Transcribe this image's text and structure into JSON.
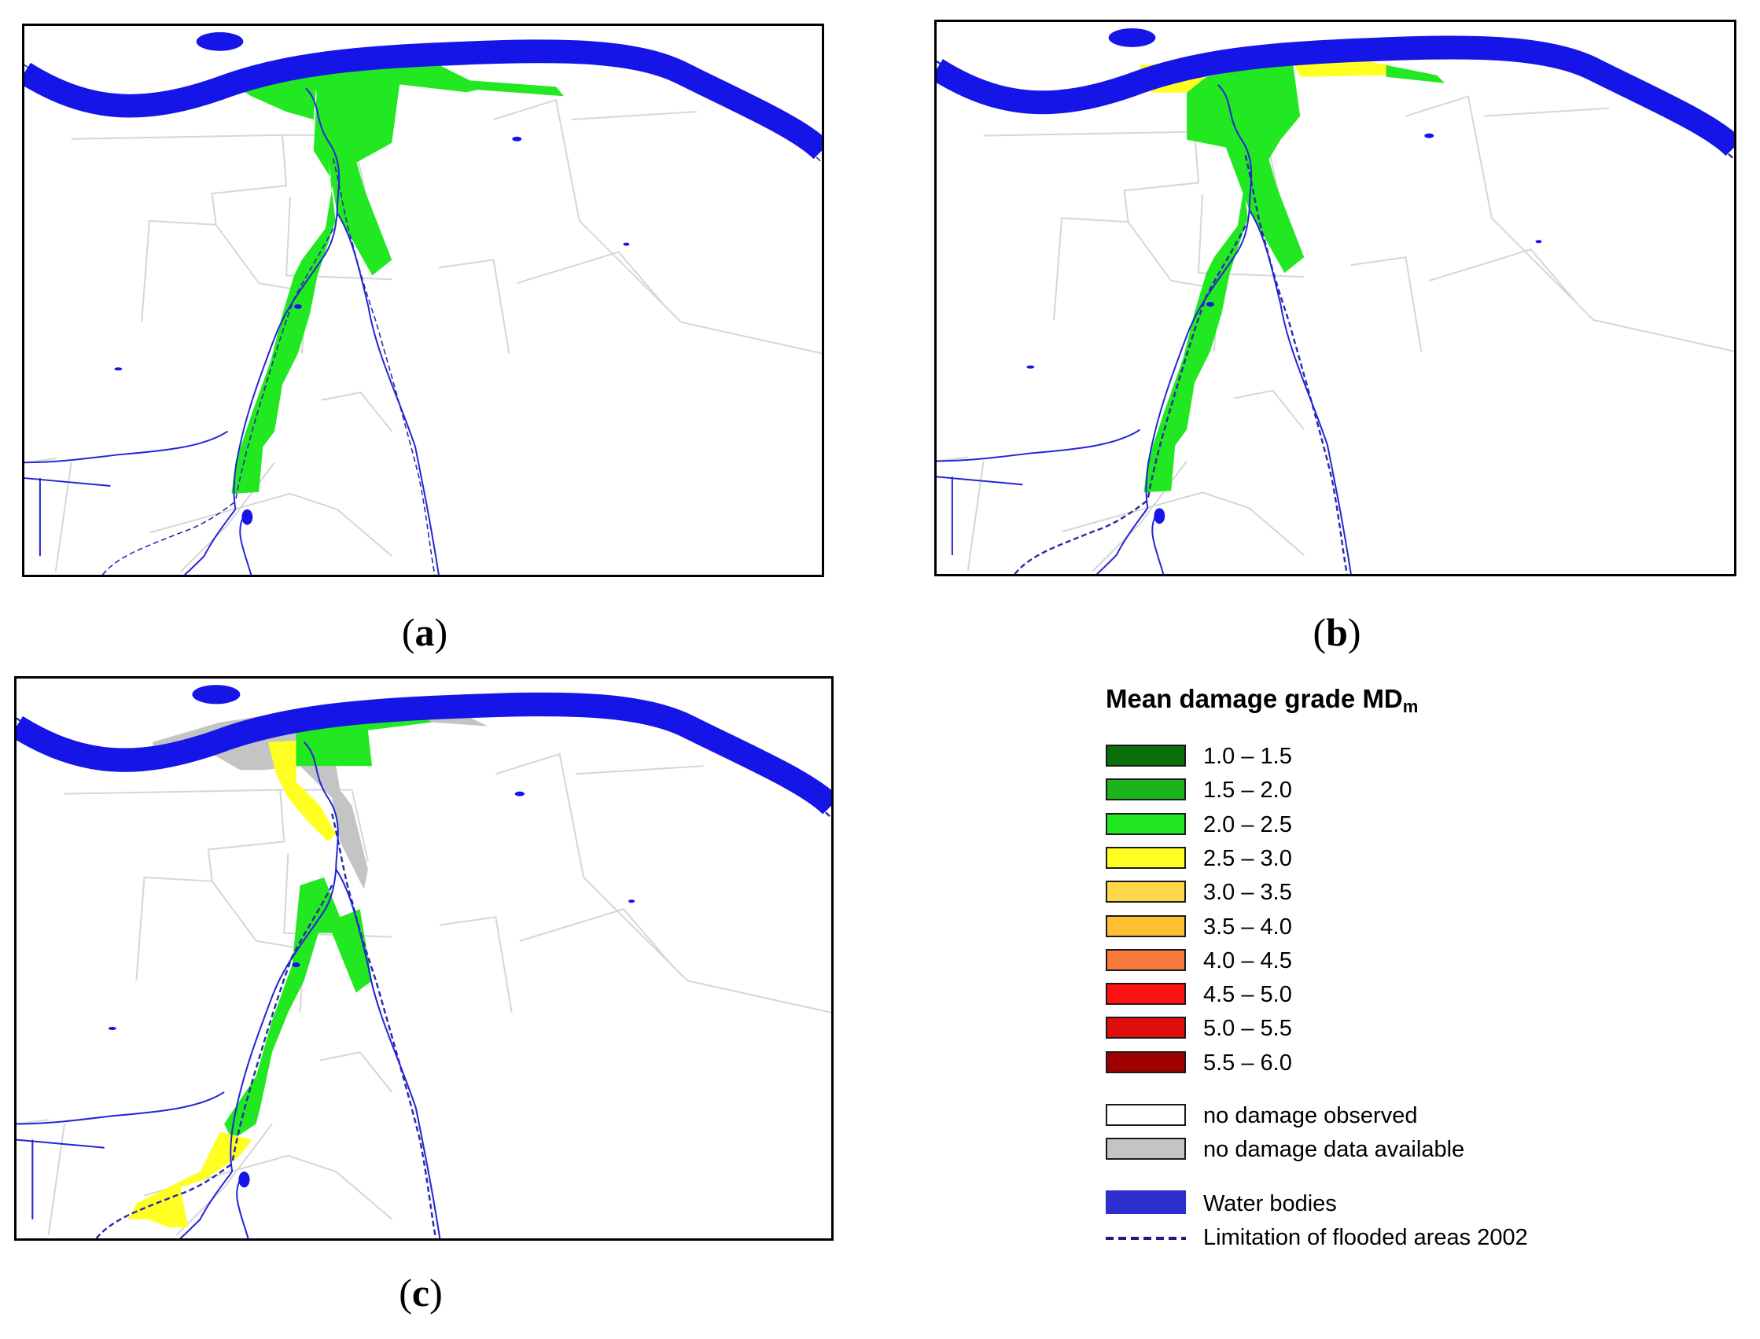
{
  "figure": {
    "panels": [
      {
        "id": "a",
        "caption_open": "(",
        "caption_letter": "a",
        "caption_close": ")"
      },
      {
        "id": "b",
        "caption_open": "(",
        "caption_letter": "b",
        "caption_close": ")"
      },
      {
        "id": "c",
        "caption_open": "(",
        "caption_letter": "c",
        "caption_close": ")"
      }
    ]
  },
  "legend": {
    "title_main": "Mean damage grade MD",
    "title_sub": "m",
    "classes": [
      {
        "label": "1.0 – 1.5",
        "color": "#0a6e0a"
      },
      {
        "label": "1.5 – 2.0",
        "color": "#1db31d"
      },
      {
        "label": "2.0 – 2.5",
        "color": "#22e822"
      },
      {
        "label": "2.5 – 3.0",
        "color": "#ffff22"
      },
      {
        "label": "3.0 – 3.5",
        "color": "#ffd84a"
      },
      {
        "label": "3.5 – 4.0",
        "color": "#ffbf33"
      },
      {
        "label": "4.0 – 4.5",
        "color": "#f57a3c"
      },
      {
        "label": "4.5 – 5.0",
        "color": "#ff1111"
      },
      {
        "label": "5.0 – 5.5",
        "color": "#e00d0d"
      },
      {
        "label": "5.5 – 6.0",
        "color": "#a00000"
      }
    ],
    "no_damage_label": "no damage observed",
    "no_damage_color": "#ffffff",
    "no_data_label": "no damage data available",
    "no_data_color": "#c4c4c4",
    "water_label": "Water bodies",
    "water_color": "#2e2ecc",
    "flood_label": "Limitation of flooded areas 2002",
    "flood_color": "#1c1c8c"
  },
  "colors": {
    "river": "#1515e8",
    "stream": "#2424d8",
    "flood_line": "#2a2aa8",
    "roads": "#d6d6d6",
    "green": "#22e822",
    "yellow": "#ffff22",
    "grey": "#c4c4c4"
  }
}
